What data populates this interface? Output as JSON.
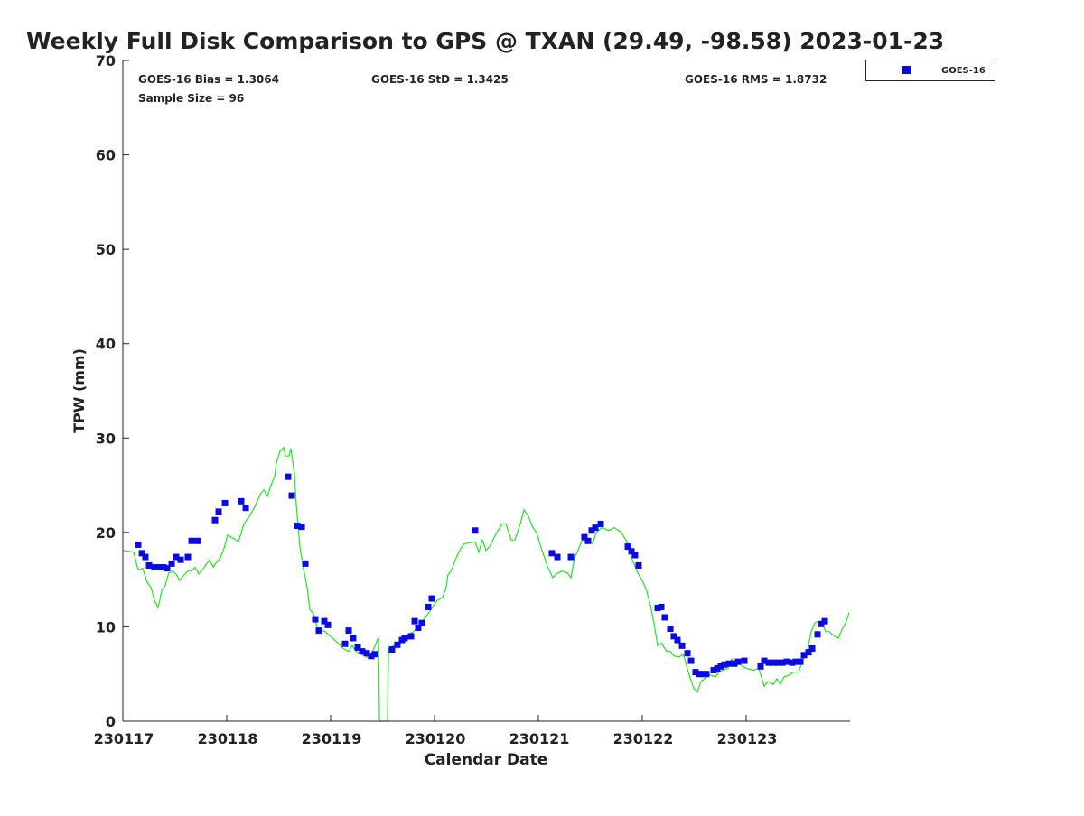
{
  "chart_data": {
    "type": "scatter",
    "title": "Weekly Full Disk Comparison to GPS @ TXAN (29.49, -98.58) 2023-01-23",
    "xlabel": "Calendar Date",
    "ylabel": "TPW (mm)",
    "x_units": "days since 230117",
    "xlim": [
      0,
      7
    ],
    "ylim": [
      0,
      70
    ],
    "x_ticks": [
      0,
      1,
      2,
      3,
      4,
      5,
      6
    ],
    "x_tick_labels": [
      "230117",
      "230118",
      "230119",
      "230120",
      "230121",
      "230122",
      "230123"
    ],
    "y_ticks": [
      0,
      10,
      20,
      30,
      40,
      50,
      60,
      70
    ],
    "y_tick_labels": [
      "0",
      "10",
      "20",
      "30",
      "40",
      "50",
      "60",
      "70"
    ],
    "grid": false,
    "legend": {
      "placement": "outside-top-right",
      "entries": [
        "GOES-16"
      ]
    },
    "stats": {
      "bias": "GOES-16 Bias = 1.3064",
      "std": "GOES-16 StD = 1.3425",
      "rms": "GOES-16 RMS = 1.8732",
      "sample": "Sample Size = 96"
    },
    "colors": {
      "goes": "#0a0ae6",
      "gps": "#22e622"
    },
    "series": [
      {
        "name": "GOES-16",
        "type": "scatter",
        "points": [
          [
            0.148,
            18.7
          ],
          [
            0.183,
            17.8
          ],
          [
            0.217,
            17.4
          ],
          [
            0.252,
            16.5
          ],
          [
            0.304,
            16.3
          ],
          [
            0.348,
            16.3
          ],
          [
            0.391,
            16.3
          ],
          [
            0.426,
            16.2
          ],
          [
            0.47,
            16.7
          ],
          [
            0.513,
            17.4
          ],
          [
            0.557,
            17.1
          ],
          [
            0.626,
            17.4
          ],
          [
            0.661,
            19.1
          ],
          [
            0.722,
            19.1
          ],
          [
            0.887,
            21.3
          ],
          [
            0.922,
            22.2
          ],
          [
            0.983,
            23.1
          ],
          [
            1.139,
            23.3
          ],
          [
            1.183,
            22.6
          ],
          [
            1.591,
            25.9
          ],
          [
            1.626,
            23.9
          ],
          [
            1.678,
            20.7
          ],
          [
            1.722,
            20.6
          ],
          [
            1.757,
            16.7
          ],
          [
            1.852,
            10.8
          ],
          [
            1.887,
            9.6
          ],
          [
            1.939,
            10.6
          ],
          [
            1.974,
            10.2
          ],
          [
            2.139,
            8.2
          ],
          [
            2.174,
            9.6
          ],
          [
            2.217,
            8.8
          ],
          [
            2.261,
            7.8
          ],
          [
            2.304,
            7.4
          ],
          [
            2.348,
            7.2
          ],
          [
            2.391,
            6.9
          ],
          [
            2.426,
            7.1
          ],
          [
            2.591,
            7.6
          ],
          [
            2.643,
            8.1
          ],
          [
            2.687,
            8.6
          ],
          [
            2.713,
            8.8
          ],
          [
            2.774,
            9.0
          ],
          [
            2.809,
            10.6
          ],
          [
            2.843,
            9.9
          ],
          [
            2.878,
            10.4
          ],
          [
            2.939,
            12.1
          ],
          [
            2.974,
            13.0
          ],
          [
            3.391,
            20.2
          ],
          [
            4.13,
            17.8
          ],
          [
            4.183,
            17.4
          ],
          [
            4.313,
            17.4
          ],
          [
            4.443,
            19.5
          ],
          [
            4.478,
            19.1
          ],
          [
            4.513,
            20.2
          ],
          [
            4.548,
            20.5
          ],
          [
            4.6,
            20.9
          ],
          [
            4.861,
            18.5
          ],
          [
            4.896,
            18.0
          ],
          [
            4.93,
            17.6
          ],
          [
            4.965,
            16.5
          ],
          [
            5.148,
            12.0
          ],
          [
            5.183,
            12.1
          ],
          [
            5.217,
            11.0
          ],
          [
            5.27,
            9.8
          ],
          [
            5.304,
            9.0
          ],
          [
            5.339,
            8.6
          ],
          [
            5.383,
            8.0
          ],
          [
            5.435,
            7.2
          ],
          [
            5.47,
            6.4
          ],
          [
            5.513,
            5.2
          ],
          [
            5.548,
            5.0
          ],
          [
            5.583,
            5.0
          ],
          [
            5.617,
            5.0
          ],
          [
            5.687,
            5.4
          ],
          [
            5.722,
            5.6
          ],
          [
            5.757,
            5.8
          ],
          [
            5.791,
            6.0
          ],
          [
            5.835,
            6.1
          ],
          [
            5.887,
            6.1
          ],
          [
            5.922,
            6.3
          ],
          [
            5.983,
            6.4
          ],
          [
            6.139,
            5.8
          ],
          [
            6.174,
            6.4
          ],
          [
            6.217,
            6.2
          ],
          [
            6.261,
            6.2
          ],
          [
            6.304,
            6.2
          ],
          [
            6.348,
            6.2
          ],
          [
            6.391,
            6.3
          ],
          [
            6.443,
            6.2
          ],
          [
            6.478,
            6.3
          ],
          [
            6.522,
            6.3
          ],
          [
            6.557,
            7.0
          ],
          [
            6.6,
            7.3
          ],
          [
            6.635,
            7.7
          ],
          [
            6.687,
            9.2
          ],
          [
            6.722,
            10.3
          ],
          [
            6.757,
            10.6
          ]
        ]
      },
      {
        "name": "GPS",
        "type": "line",
        "points": [
          [
            0,
            18.1
          ],
          [
            0.104,
            17.9
          ],
          [
            0.148,
            16.0
          ],
          [
            0.191,
            16.2
          ],
          [
            0.235,
            14.7
          ],
          [
            0.27,
            14.2
          ],
          [
            0.304,
            12.8
          ],
          [
            0.339,
            12.0
          ],
          [
            0.374,
            13.8
          ],
          [
            0.409,
            14.4
          ],
          [
            0.443,
            15.7
          ],
          [
            0.478,
            15.9
          ],
          [
            0.513,
            15.6
          ],
          [
            0.548,
            14.9
          ],
          [
            0.583,
            15.4
          ],
          [
            0.626,
            15.9
          ],
          [
            0.661,
            15.9
          ],
          [
            0.696,
            16.3
          ],
          [
            0.73,
            15.6
          ],
          [
            0.765,
            16.0
          ],
          [
            0.8,
            16.6
          ],
          [
            0.835,
            17.1
          ],
          [
            0.87,
            16.3
          ],
          [
            0.904,
            16.9
          ],
          [
            0.939,
            17.3
          ],
          [
            0.974,
            18.3
          ],
          [
            1.009,
            19.7
          ],
          [
            1.078,
            19.3
          ],
          [
            1.113,
            19.0
          ],
          [
            1.165,
            20.9
          ],
          [
            1.217,
            21.7
          ],
          [
            1.27,
            22.7
          ],
          [
            1.322,
            24.0
          ],
          [
            1.357,
            24.5
          ],
          [
            1.391,
            23.8
          ],
          [
            1.426,
            25.0
          ],
          [
            1.461,
            25.9
          ],
          [
            1.478,
            27.4
          ],
          [
            1.513,
            28.6
          ],
          [
            1.548,
            29.0
          ],
          [
            1.565,
            28.1
          ],
          [
            1.6,
            28.1
          ],
          [
            1.617,
            28.9
          ],
          [
            1.652,
            26.2
          ],
          [
            1.67,
            22.8
          ],
          [
            1.704,
            18.5
          ],
          [
            1.739,
            16.1
          ],
          [
            1.774,
            14.2
          ],
          [
            1.8,
            11.8
          ],
          [
            1.835,
            11.4
          ],
          [
            1.878,
            9.7
          ],
          [
            1.948,
            9.5
          ],
          [
            2.0,
            9.0
          ],
          [
            2.07,
            8.3
          ],
          [
            2.122,
            7.7
          ],
          [
            2.174,
            7.4
          ],
          [
            2.209,
            8.0
          ],
          [
            2.243,
            7.4
          ],
          [
            2.296,
            7.1
          ],
          [
            2.365,
            6.7
          ],
          [
            2.417,
            7.7
          ],
          [
            2.461,
            8.9
          ],
          [
            2.47,
            0
          ],
          [
            2.548,
            0
          ],
          [
            2.557,
            7.7
          ],
          [
            2.591,
            7.9
          ],
          [
            2.643,
            8.3
          ],
          [
            2.696,
            8.5
          ],
          [
            2.748,
            9.2
          ],
          [
            2.8,
            9.5
          ],
          [
            2.852,
            10.2
          ],
          [
            2.904,
            10.9
          ],
          [
            2.957,
            11.7
          ],
          [
            3.026,
            12.8
          ],
          [
            3.078,
            13.1
          ],
          [
            3.113,
            14.2
          ],
          [
            3.13,
            15.5
          ],
          [
            3.165,
            16.0
          ],
          [
            3.2,
            17.1
          ],
          [
            3.252,
            18.3
          ],
          [
            3.287,
            18.8
          ],
          [
            3.339,
            18.9
          ],
          [
            3.391,
            19.0
          ],
          [
            3.426,
            17.9
          ],
          [
            3.461,
            19.2
          ],
          [
            3.496,
            18.1
          ],
          [
            3.53,
            18.5
          ],
          [
            3.6,
            20.0
          ],
          [
            3.652,
            20.9
          ],
          [
            3.687,
            20.9
          ],
          [
            3.739,
            19.2
          ],
          [
            3.774,
            19.2
          ],
          [
            3.826,
            20.9
          ],
          [
            3.861,
            22.4
          ],
          [
            3.896,
            21.9
          ],
          [
            3.948,
            20.5
          ],
          [
            3.983,
            20.0
          ],
          [
            4.035,
            18.1
          ],
          [
            4.087,
            16.4
          ],
          [
            4.139,
            15.2
          ],
          [
            4.174,
            15.6
          ],
          [
            4.226,
            15.9
          ],
          [
            4.278,
            15.7
          ],
          [
            4.313,
            15.2
          ],
          [
            4.348,
            17.3
          ],
          [
            4.383,
            18.1
          ],
          [
            4.417,
            19.1
          ],
          [
            4.452,
            19.5
          ],
          [
            4.487,
            19.1
          ],
          [
            4.522,
            18.8
          ],
          [
            4.557,
            20.0
          ],
          [
            4.609,
            20.5
          ],
          [
            4.678,
            20.2
          ],
          [
            4.73,
            20.5
          ],
          [
            4.8,
            20.0
          ],
          [
            4.852,
            19.0
          ],
          [
            4.904,
            17.1
          ],
          [
            4.957,
            15.7
          ],
          [
            5.009,
            14.7
          ],
          [
            5.043,
            13.8
          ],
          [
            5.078,
            12.3
          ],
          [
            5.113,
            10.4
          ],
          [
            5.148,
            8.0
          ],
          [
            5.183,
            8.3
          ],
          [
            5.235,
            7.4
          ],
          [
            5.27,
            7.4
          ],
          [
            5.304,
            6.9
          ],
          [
            5.357,
            6.8
          ],
          [
            5.391,
            7.1
          ],
          [
            5.409,
            6.6
          ],
          [
            5.443,
            5.2
          ],
          [
            5.496,
            3.5
          ],
          [
            5.53,
            3.1
          ],
          [
            5.565,
            4.2
          ],
          [
            5.617,
            4.7
          ],
          [
            5.652,
            4.9
          ],
          [
            5.704,
            4.7
          ],
          [
            5.739,
            5.2
          ],
          [
            5.774,
            5.4
          ],
          [
            5.826,
            5.6
          ],
          [
            5.861,
            6.6
          ],
          [
            5.896,
            5.8
          ],
          [
            5.93,
            6.1
          ],
          [
            6.0,
            5.6
          ],
          [
            6.07,
            5.4
          ],
          [
            6.122,
            5.6
          ],
          [
            6.174,
            3.7
          ],
          [
            6.209,
            4.2
          ],
          [
            6.261,
            3.9
          ],
          [
            6.296,
            4.5
          ],
          [
            6.33,
            3.9
          ],
          [
            6.365,
            4.7
          ],
          [
            6.417,
            4.9
          ],
          [
            6.452,
            5.2
          ],
          [
            6.504,
            5.2
          ],
          [
            6.539,
            6.3
          ],
          [
            6.591,
            7.6
          ],
          [
            6.626,
            9.5
          ],
          [
            6.661,
            10.4
          ],
          [
            6.696,
            10.6
          ],
          [
            6.73,
            10.4
          ],
          [
            6.765,
            9.5
          ],
          [
            6.8,
            9.5
          ],
          [
            6.852,
            9.0
          ],
          [
            6.887,
            8.8
          ],
          [
            6.922,
            9.7
          ],
          [
            6.957,
            10.4
          ],
          [
            6.991,
            11.5
          ]
        ]
      }
    ]
  }
}
